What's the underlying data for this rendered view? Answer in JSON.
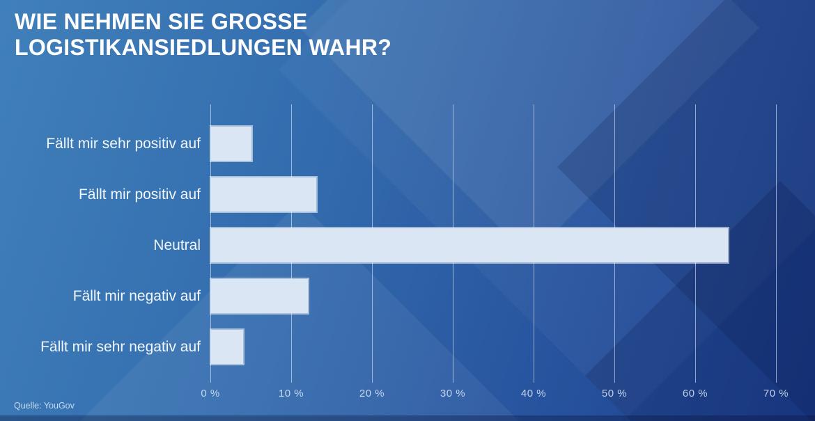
{
  "header": {
    "title": "WIE NEHMEN SIE GROSSE\nLOGISTIKANSIEDLUNGEN WAHR?"
  },
  "footer": {
    "source": "Quelle: YouGov"
  },
  "chart_data": {
    "type": "bar",
    "orientation": "horizontal",
    "title": "WIE NEHMEN SIE GROSSE LOGISTIKANSIEDLUNGEN WAHR?",
    "categories": [
      "Fällt mir sehr positiv auf",
      "Fällt mir positiv auf",
      "Neutral",
      "Fällt mir negativ auf",
      "Fällt mir sehr negativ auf"
    ],
    "values": [
      5,
      13,
      64,
      12,
      4
    ],
    "unit": "%",
    "xlabel": "",
    "ylabel": "",
    "xlim": [
      0,
      70
    ],
    "x_tick_step": 10,
    "x_tick_labels": [
      "0 %",
      "10 %",
      "20 %",
      "30 %",
      "40 %",
      "50 %",
      "60 %",
      "70 %"
    ],
    "grid": true,
    "legend": false,
    "source": "Quelle: YouGov",
    "colors": {
      "bar_fill": "#dbe6f5",
      "gridline": "rgba(225,238,252,0.6)",
      "category_label_text": "#f2f7fd",
      "tick_label_text": "rgba(218,233,250,0.85)",
      "title_text": "#ffffff",
      "background_top_left": "#4080ba",
      "background_bottom_right": "#1c3e8d"
    }
  }
}
